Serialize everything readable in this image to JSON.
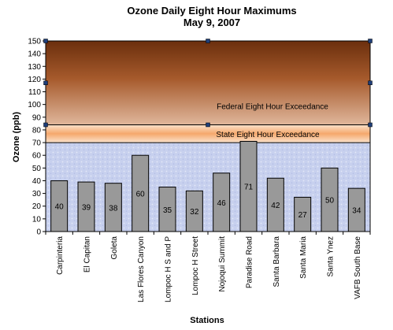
{
  "chart_data": {
    "type": "bar",
    "title": "Ozone Daily Eight Hour Maximums",
    "subtitle": "May 9, 2007",
    "xlabel": "Stations",
    "ylabel": "Ozone (ppb)",
    "ylim": [
      0,
      150
    ],
    "yticks": [
      0,
      10,
      20,
      30,
      40,
      50,
      60,
      70,
      80,
      90,
      100,
      110,
      120,
      130,
      140,
      150
    ],
    "categories": [
      "Carpinteria",
      "El Capitan",
      "Goleta",
      "Las Flores Canyon",
      "Lompoc H S and P",
      "Lompoc H Street",
      "Nojoqui Summit",
      "Paradise Road",
      "Santa Barbara",
      "Santa Maria",
      "Santa Ynez",
      "VAFB South Base"
    ],
    "values": [
      40,
      39,
      38,
      60,
      35,
      32,
      46,
      71,
      42,
      27,
      50,
      34
    ],
    "bands": [
      {
        "label": "State Eight Hour Exceedance",
        "from": 70,
        "to": 84
      },
      {
        "label": "Federal Eight Hour Exceedance",
        "from": 84,
        "to": 150
      }
    ],
    "bar_color": "#999999",
    "band_colors": {
      "federal_top": "#6b2f0d",
      "federal_bottom": "#d6a282",
      "state": "#f7b886",
      "below": "#c9d2ef"
    },
    "grid": false,
    "legend": "none"
  }
}
